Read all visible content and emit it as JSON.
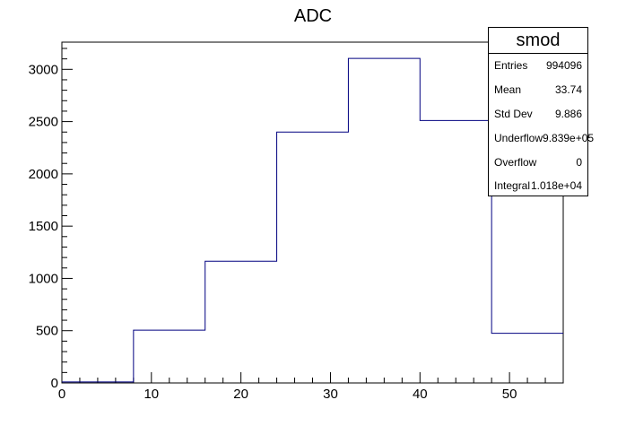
{
  "chart_data": {
    "type": "bar",
    "style": "step-histogram",
    "title": "ADC",
    "xlabel": "",
    "ylabel": "",
    "bin_edges": [
      0,
      8,
      16,
      24,
      32,
      40,
      48,
      56
    ],
    "values": [
      10,
      505,
      1165,
      2400,
      3105,
      2510,
      475
    ],
    "xlim": [
      0,
      56
    ],
    "ylim": [
      0,
      3260
    ],
    "x_ticks": [
      0,
      10,
      20,
      30,
      40,
      50
    ],
    "y_ticks": [
      0,
      500,
      1000,
      1500,
      2000,
      2500,
      3000
    ],
    "line_color": "#000080",
    "grid": false
  },
  "stats_box": {
    "title": "smod",
    "rows": [
      {
        "label": "Entries",
        "value": "994096"
      },
      {
        "label": "Mean",
        "value": "33.74"
      },
      {
        "label": "Std Dev",
        "value": "9.886"
      },
      {
        "label": "Underflow",
        "value": "9.839e+05"
      },
      {
        "label": "Overflow",
        "value": "0"
      },
      {
        "label": "Integral",
        "value": "1.018e+04"
      }
    ]
  }
}
